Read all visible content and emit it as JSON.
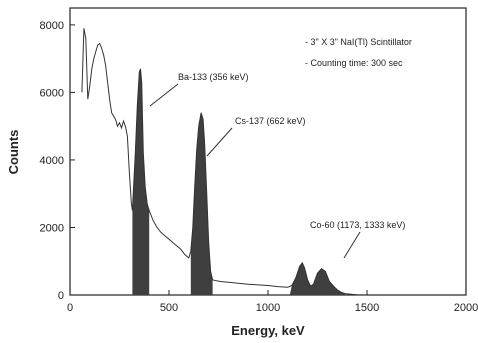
{
  "chart_data": {
    "type": "area",
    "title": "",
    "xlabel": "Energy, keV",
    "ylabel": "Counts",
    "xlim": [
      0,
      2000
    ],
    "ylim": [
      0,
      8500
    ],
    "xticks": [
      0,
      500,
      1000,
      1500,
      2000
    ],
    "yticks": [
      0,
      2000,
      4000,
      6000,
      8000
    ],
    "grid": false,
    "legend": "none",
    "series": [
      {
        "x": [
          60,
          70,
          80,
          90,
          100,
          110,
          120,
          130,
          140,
          150,
          160,
          170,
          180,
          190,
          200,
          210,
          220,
          230,
          240,
          250,
          260,
          270,
          280,
          290,
          300,
          310,
          315,
          320,
          330,
          340,
          350,
          356,
          362,
          370,
          380,
          390,
          400,
          420,
          440,
          460,
          480,
          500,
          520,
          540,
          560,
          580,
          600,
          610,
          620,
          630,
          640,
          650,
          662,
          672,
          680,
          690,
          700,
          710,
          720,
          740,
          760,
          800,
          850,
          900,
          950,
          1000,
          1050,
          1100,
          1120,
          1140,
          1160,
          1173,
          1185,
          1200,
          1215,
          1230,
          1250,
          1270,
          1290,
          1310,
          1333,
          1350,
          1370,
          1390,
          1420,
          1450,
          1500
        ],
        "y": [
          6000,
          7900,
          7600,
          5800,
          6200,
          6700,
          7000,
          7200,
          7400,
          7450,
          7300,
          7100,
          6800,
          6300,
          5800,
          5400,
          5300,
          5200,
          5000,
          5100,
          4950,
          5150,
          5000,
          4700,
          3600,
          2700,
          2500,
          3100,
          4200,
          5600,
          6600,
          6700,
          6300,
          4200,
          3200,
          2700,
          2500,
          2200,
          2000,
          1850,
          1750,
          1650,
          1550,
          1450,
          1350,
          1200,
          1100,
          1300,
          2000,
          3200,
          4300,
          5000,
          5400,
          5200,
          4500,
          3100,
          1600,
          700,
          450,
          420,
          400,
          380,
          350,
          320,
          300,
          280,
          250,
          230,
          280,
          500,
          850,
          950,
          800,
          450,
          260,
          320,
          650,
          780,
          700,
          400,
          250,
          150,
          80,
          40,
          20,
          10,
          0
        ]
      }
    ],
    "peaks": [
      {
        "label": "Ba-133 (356 keV)",
        "x_range": [
          315,
          400
        ]
      },
      {
        "label": "Cs-137 (662 keV)",
        "x_range": [
          610,
          720
        ]
      },
      {
        "label": "Co-60 (1173, 1333 keV)",
        "x_range": [
          1110,
          1390
        ]
      }
    ],
    "annotations": [
      "- 3\" X 3\" NaI(Tl) Scintillator",
      "- Counting time: 300 sec"
    ],
    "colors": {
      "fill": "#3f3f3f",
      "line": "#333333"
    }
  }
}
